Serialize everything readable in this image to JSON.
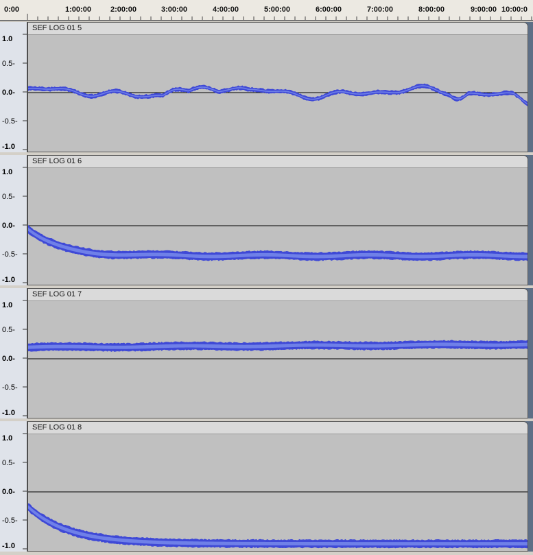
{
  "timeline": {
    "labels": [
      "0:00",
      "1:00:00",
      "2:00:00",
      "3:00:00",
      "4:00:00",
      "5:00:00",
      "6:00:00",
      "7:00:00",
      "8:00:00",
      "9:00:00",
      "10:00:0"
    ]
  },
  "amplitude_ruler": {
    "labels": [
      "1.0",
      "0.5-",
      "0.0-",
      "-0.5-",
      "-1.0"
    ]
  },
  "colors": {
    "waveform_outer": "#3f49d6",
    "waveform_inner": "#6f80e8",
    "clip_background": "#c0c0c0",
    "center_line": "#000000"
  },
  "tracks": [
    {
      "title": "SEF LOG 01 5",
      "shape": "wobble"
    },
    {
      "title": "SEF LOG 01 6",
      "shape": "decay"
    },
    {
      "title": "SEF LOG 01 7",
      "shape": "band"
    },
    {
      "title": "SEF LOG 01 8",
      "shape": "deep-decay"
    }
  ]
}
